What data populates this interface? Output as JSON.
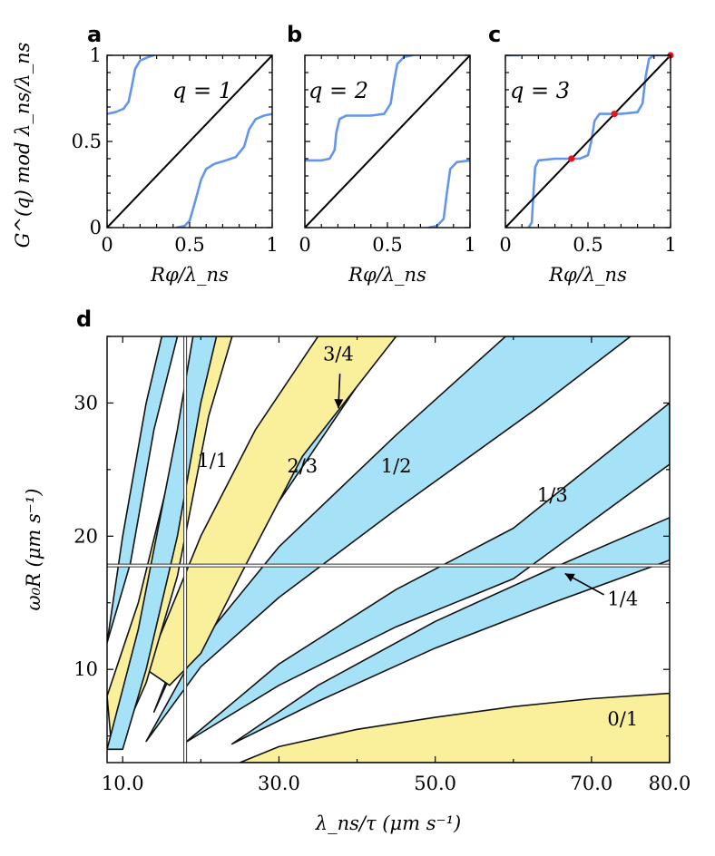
{
  "colors": {
    "curve": "#6495ed",
    "diagonal": "#000000",
    "fixed_point": "#e8141c",
    "tongue_blue": "#a6e2f7",
    "tongue_yellow": "#faef9a",
    "outline": "#111111",
    "guide_line": "#ffffff"
  },
  "chart_data": [
    {
      "id": "a",
      "type": "line",
      "panel_label": "a",
      "q_label": "q = 1",
      "xlabel": "Rφ/λ_ns",
      "ylabel": "G^(q) mod λ_ns/λ_ns",
      "xlim": [
        0,
        1
      ],
      "ylim": [
        0,
        1
      ],
      "x_ticks": [
        "0",
        "0.5",
        "1"
      ],
      "y_ticks": [
        "0",
        "0.5",
        "1"
      ],
      "series": [
        {
          "name": "G mod",
          "segments": [
            [
              [
                0.0,
                0.66
              ],
              [
                0.05,
                0.67
              ],
              [
                0.1,
                0.69
              ],
              [
                0.13,
                0.73
              ],
              [
                0.15,
                0.82
              ],
              [
                0.17,
                0.92
              ],
              [
                0.2,
                0.97
              ],
              [
                0.25,
                0.99
              ],
              [
                0.28,
                1.0
              ]
            ],
            [
              [
                0.42,
                0.0
              ],
              [
                0.47,
                0.01
              ],
              [
                0.5,
                0.04
              ],
              [
                0.53,
                0.14
              ],
              [
                0.57,
                0.28
              ],
              [
                0.6,
                0.34
              ],
              [
                0.65,
                0.37
              ],
              [
                0.72,
                0.39
              ],
              [
                0.78,
                0.41
              ],
              [
                0.83,
                0.47
              ],
              [
                0.86,
                0.57
              ],
              [
                0.9,
                0.63
              ],
              [
                0.95,
                0.65
              ],
              [
                1.0,
                0.66
              ]
            ]
          ]
        },
        {
          "name": "diagonal",
          "points": [
            [
              0,
              0
            ],
            [
              1,
              1
            ]
          ]
        }
      ],
      "fixed_points": []
    },
    {
      "id": "b",
      "type": "line",
      "panel_label": "b",
      "q_label": "q = 2",
      "xlabel": "Rφ/λ_ns",
      "xlim": [
        0,
        1
      ],
      "ylim": [
        0,
        1
      ],
      "x_ticks": [
        "0",
        "0.5",
        "1"
      ],
      "y_ticks": [],
      "series": [
        {
          "name": "G mod",
          "segments": [
            [
              [
                0.0,
                0.39
              ],
              [
                0.1,
                0.39
              ],
              [
                0.15,
                0.4
              ],
              [
                0.18,
                0.45
              ],
              [
                0.19,
                0.55
              ],
              [
                0.21,
                0.63
              ],
              [
                0.25,
                0.65
              ],
              [
                0.4,
                0.65
              ],
              [
                0.48,
                0.66
              ],
              [
                0.52,
                0.72
              ],
              [
                0.54,
                0.85
              ],
              [
                0.56,
                0.95
              ],
              [
                0.6,
                0.99
              ],
              [
                0.65,
                1.0
              ]
            ],
            [
              [
                0.75,
                0.0
              ],
              [
                0.8,
                0.01
              ],
              [
                0.84,
                0.05
              ],
              [
                0.86,
                0.2
              ],
              [
                0.88,
                0.34
              ],
              [
                0.92,
                0.38
              ],
              [
                1.0,
                0.39
              ]
            ]
          ]
        },
        {
          "name": "diagonal",
          "points": [
            [
              0,
              0
            ],
            [
              1,
              1
            ]
          ]
        }
      ],
      "fixed_points": []
    },
    {
      "id": "c",
      "type": "line",
      "panel_label": "c",
      "q_label": "q = 3",
      "xlabel": "Rφ/λ_ns",
      "xlim": [
        0,
        1
      ],
      "ylim": [
        0,
        1
      ],
      "x_ticks": [
        "0",
        "0.5",
        "1"
      ],
      "y_ticks": [],
      "series": [
        {
          "name": "G mod",
          "segments": [
            [
              [
                0.0,
                1.0
              ],
              [
                0.08,
                1.0
              ]
            ],
            [
              [
                0.14,
                0.0
              ],
              [
                0.16,
                0.03
              ],
              [
                0.17,
                0.2
              ],
              [
                0.18,
                0.35
              ],
              [
                0.2,
                0.39
              ],
              [
                0.3,
                0.4
              ],
              [
                0.45,
                0.4
              ],
              [
                0.5,
                0.42
              ],
              [
                0.52,
                0.5
              ],
              [
                0.54,
                0.62
              ],
              [
                0.57,
                0.66
              ],
              [
                0.7,
                0.66
              ],
              [
                0.8,
                0.67
              ],
              [
                0.83,
                0.72
              ],
              [
                0.85,
                0.88
              ],
              [
                0.87,
                0.98
              ],
              [
                0.9,
                1.0
              ],
              [
                1.0,
                1.0
              ]
            ]
          ]
        },
        {
          "name": "diagonal",
          "points": [
            [
              0,
              0
            ],
            [
              1,
              1
            ]
          ]
        }
      ],
      "fixed_points": [
        [
          0.4,
          0.4
        ],
        [
          0.66,
          0.66
        ],
        [
          1.0,
          1.0
        ]
      ]
    },
    {
      "id": "d",
      "type": "area",
      "panel_label": "d",
      "xlabel": "λ_ns/τ (μm s⁻¹)",
      "ylabel": "ω₀R (μm s⁻¹)",
      "xlim": [
        8,
        80
      ],
      "ylim": [
        3,
        35
      ],
      "x_ticks": [
        "10.0",
        "30.0",
        "50.0",
        "70.0",
        "80.0"
      ],
      "y_ticks": [
        "10",
        "20",
        "30"
      ],
      "guide_lines": {
        "x": 18,
        "y": 17.8
      },
      "regions": [
        {
          "name": "0/1",
          "color": "yellow",
          "upper": [
            [
              25,
              3
            ],
            [
              30,
              4.2
            ],
            [
              40,
              5.5
            ],
            [
              50,
              6.4
            ],
            [
              60,
              7.2
            ],
            [
              70,
              7.8
            ],
            [
              80,
              8.2
            ]
          ],
          "lower": [
            [
              25,
              3
            ],
            [
              80,
              3
            ]
          ]
        },
        {
          "name": "1/4",
          "color": "blue",
          "upper": [
            [
              24,
              4.4
            ],
            [
              35,
              8.8
            ],
            [
              50,
              13.6
            ],
            [
              65,
              17.6
            ],
            [
              80,
              21.4
            ]
          ],
          "lower": [
            [
              24,
              4.4
            ],
            [
              35,
              7.6
            ],
            [
              50,
              11.6
            ],
            [
              65,
              15
            ],
            [
              80,
              18.2
            ]
          ]
        },
        {
          "name": "1/3",
          "color": "blue",
          "upper": [
            [
              18,
              4.5
            ],
            [
              30,
              10.4
            ],
            [
              45,
              16
            ],
            [
              60,
              20.6
            ],
            [
              80,
              30
            ]
          ],
          "lower": [
            [
              18,
              4.5
            ],
            [
              30,
              8.8
            ],
            [
              45,
              13.2
            ],
            [
              60,
              16.8
            ],
            [
              80,
              25.4
            ]
          ]
        },
        {
          "name": "1/2",
          "color": "blue",
          "upper": [
            [
              13,
              4.6
            ],
            [
              20,
              12
            ],
            [
              30,
              19.2
            ],
            [
              45,
              27.6
            ],
            [
              59,
              35
            ]
          ],
          "lower": [
            [
              13,
              4.6
            ],
            [
              20,
              10.2
            ],
            [
              30,
              15.4
            ],
            [
              45,
              22
            ],
            [
              63,
              29.6
            ],
            [
              75,
              35
            ]
          ]
        },
        {
          "name": "2/3",
          "color": "blue",
          "upper": [
            [
              14,
              6.8
            ],
            [
              20,
              15.8
            ],
            [
              30,
              25.4
            ],
            [
              40,
              35
            ]
          ],
          "lower": [
            [
              14,
              6.8
            ],
            [
              20,
              14.6
            ],
            [
              30,
              22.6
            ],
            [
              42,
              33
            ],
            [
              44,
              35
            ]
          ]
        },
        {
          "name": "3/4",
          "color": "blue",
          "upper": [
            [
              15,
              9.4
            ],
            [
              25,
              22.4
            ],
            [
              34,
              32
            ],
            [
              37,
              35
            ]
          ],
          "lower": [
            [
              15,
              9.4
            ],
            [
              25,
              21.6
            ],
            [
              35,
              31.8
            ],
            [
              39,
              35
            ]
          ]
        },
        {
          "name": "1/1",
          "color": "yellow",
          "upper": [
            [
              13,
              10
            ],
            [
              20,
              20
            ],
            [
              27,
              28
            ],
            [
              35,
              35
            ]
          ],
          "lower": [
            [
              13,
              10
            ],
            [
              16,
              8.8
            ],
            [
              20,
              11.2
            ],
            [
              25,
              17
            ],
            [
              33,
              26
            ],
            [
              45,
              35
            ]
          ]
        },
        {
          "name": "left-yellow",
          "color": "yellow",
          "upper": [
            [
              8,
              8
            ],
            [
              12,
              15
            ],
            [
              17,
              27
            ],
            [
              22,
              35
            ]
          ],
          "lower": [
            [
              8,
              8
            ],
            [
              8.6,
              4
            ],
            [
              10,
              5
            ],
            [
              13,
              9
            ],
            [
              17,
              17
            ],
            [
              21,
              29
            ],
            [
              24,
              35
            ]
          ]
        },
        {
          "name": "left-blue",
          "color": "blue",
          "upper": [
            [
              8,
              4
            ],
            [
              12,
              13
            ],
            [
              15,
              22
            ],
            [
              17,
              28
            ],
            [
              19,
              35
            ]
          ],
          "lower": [
            [
              8,
              4
            ],
            [
              10,
              4
            ],
            [
              13,
              10
            ],
            [
              17,
              20
            ],
            [
              20,
              30
            ],
            [
              22,
              35
            ]
          ]
        },
        {
          "name": "left-blue-2",
          "color": "blue",
          "upper": [
            [
              8,
              12
            ],
            [
              10,
              20
            ],
            [
              13,
              30
            ],
            [
              15,
              35
            ]
          ],
          "lower": [
            [
              8,
              12
            ],
            [
              11,
              18
            ],
            [
              14,
              28
            ],
            [
              17,
              35
            ]
          ]
        }
      ],
      "labels": [
        {
          "text": "0/1",
          "x": 74,
          "y": 5.8
        },
        {
          "text": "1/4",
          "x": 74,
          "y": 14.8
        },
        {
          "text": "1/3",
          "x": 65,
          "y": 22.6
        },
        {
          "text": "1/2",
          "x": 45,
          "y": 24.8
        },
        {
          "text": "2/3",
          "x": 33,
          "y": 24.8
        },
        {
          "text": "1/1",
          "x": 21.5,
          "y": 25.2
        },
        {
          "text": "3/4",
          "x": 37.6,
          "y": 33.2
        }
      ],
      "arrows": [
        {
          "from": [
            37.8,
            32.2
          ],
          "to": [
            37.6,
            29.6
          ]
        },
        {
          "from": [
            71.6,
            15.6
          ],
          "to": [
            66.6,
            17.2
          ]
        }
      ]
    }
  ]
}
